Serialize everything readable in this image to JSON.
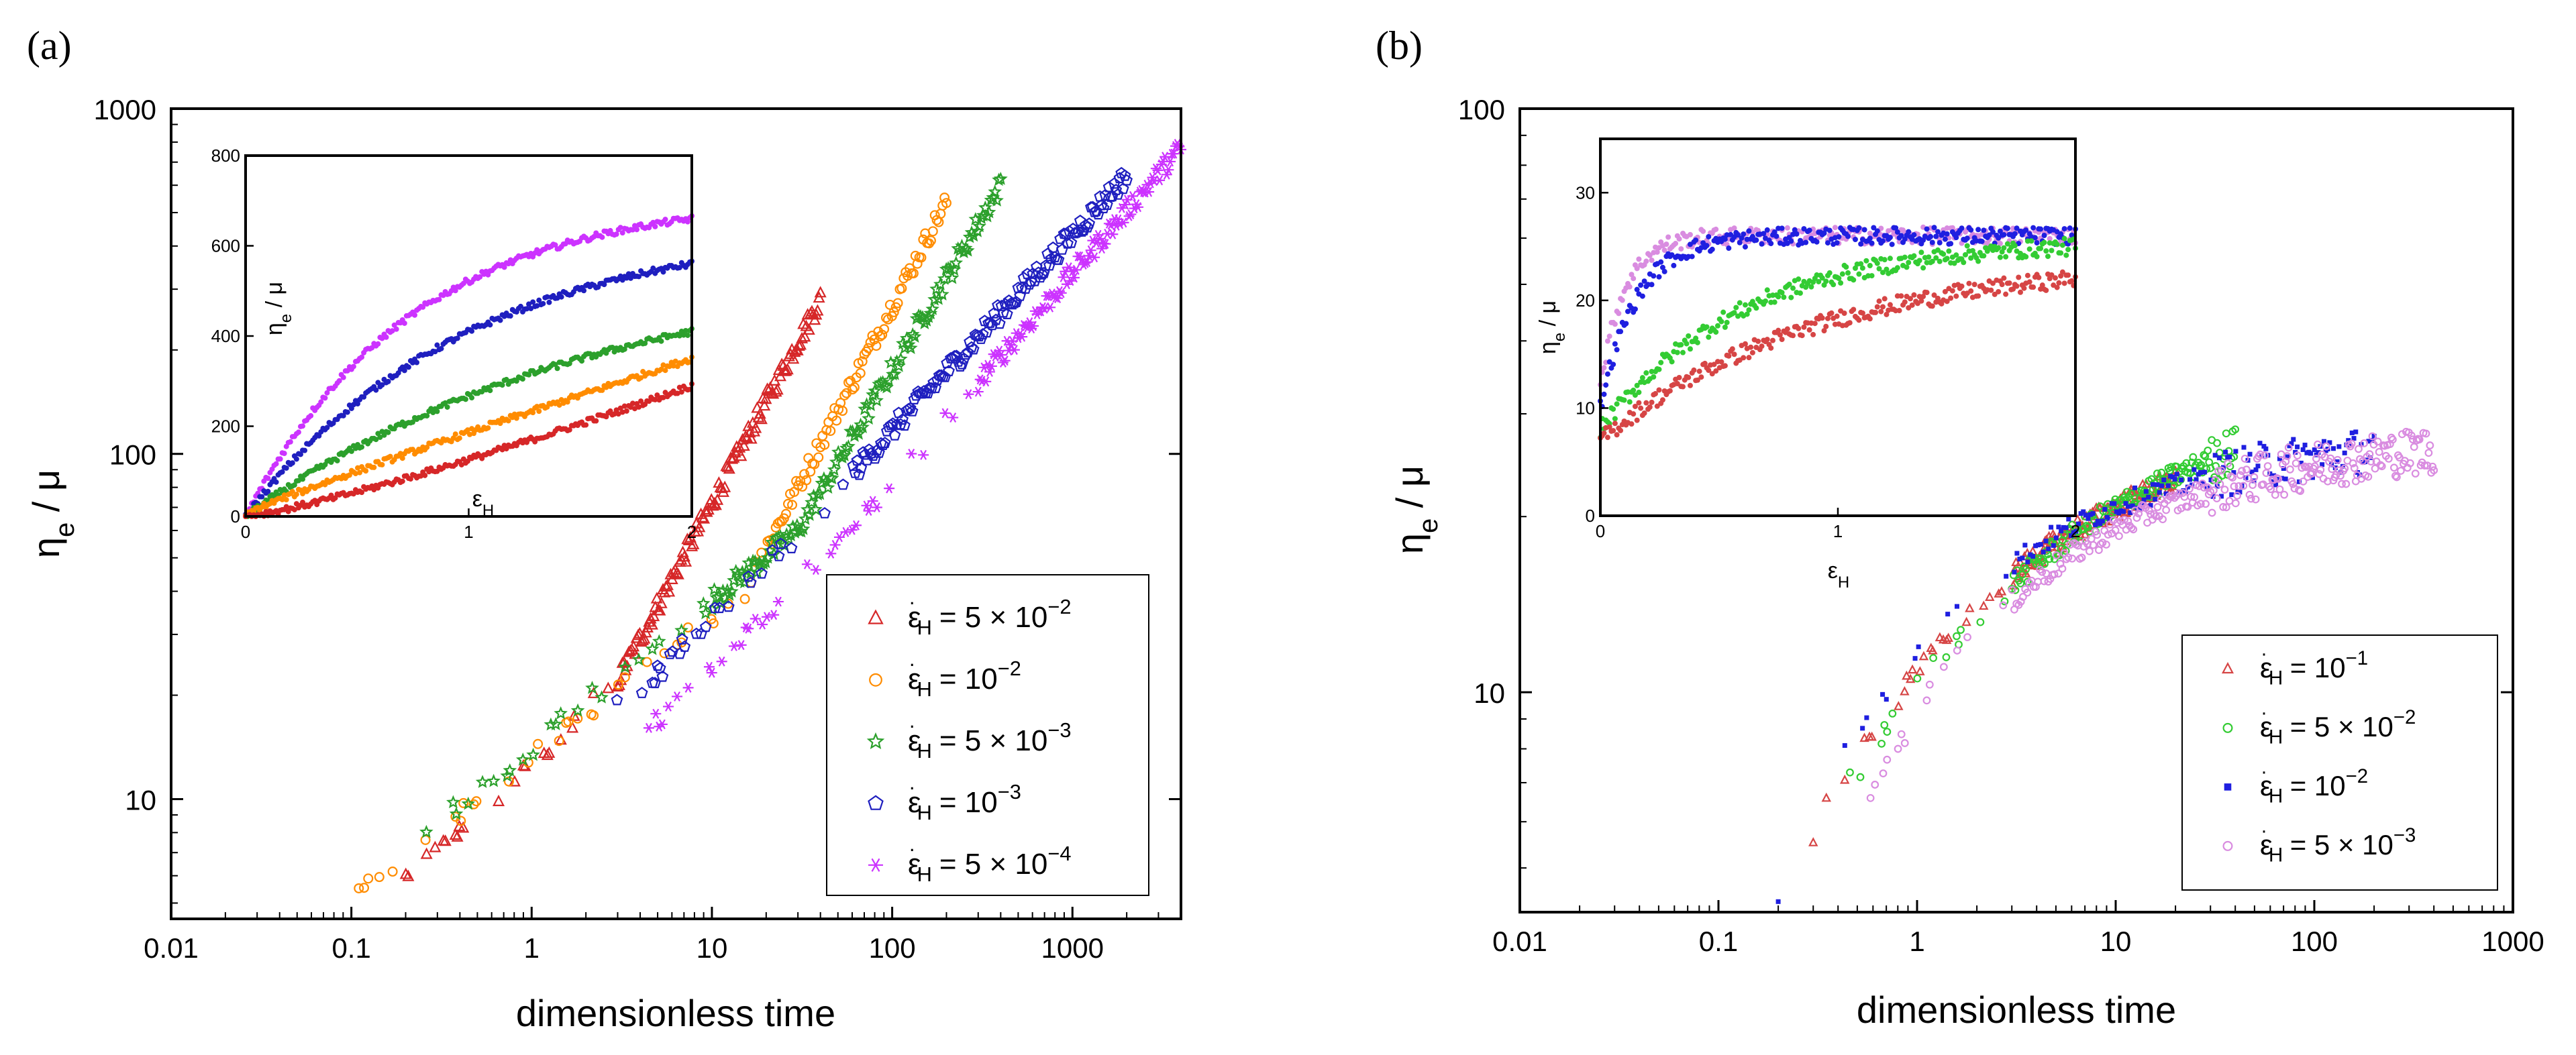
{
  "chart_data": [
    {
      "panel_label": "(a)",
      "type": "scatter",
      "xlabel": "dimensionless time",
      "ylabel_main": "η",
      "ylabel_sub": "e",
      "ylabel_rest": " / μ",
      "xscale": "log",
      "yscale": "log",
      "xlim": [
        0.01,
        4000
      ],
      "ylim": [
        4.5,
        1000
      ],
      "xticks": [
        0.01,
        0.1,
        1,
        10,
        100,
        1000
      ],
      "xtick_labels": [
        "0.01",
        "0.1",
        "1",
        "10",
        "100",
        "1000"
      ],
      "yticks": [
        10,
        100,
        1000
      ],
      "ytick_labels": [
        "10",
        "100",
        "1000"
      ],
      "legend_position": "bottom-right",
      "series": [
        {
          "legend_label": "= 5 × 10",
          "exponent": "−2",
          "color": "#d62728",
          "marker": "triangle",
          "t_start": 0.16,
          "t_end": 40,
          "y_start": 5.2,
          "y_end": 280,
          "y_mid": 22,
          "t_mid": 3.0,
          "dense_from": 3.0
        },
        {
          "legend_label": "= 10",
          "exponent": "−2",
          "color": "#ff8c00",
          "marker": "circle",
          "t_start": 0.11,
          "t_end": 200,
          "y_start": 5.4,
          "y_end": 540,
          "y_mid": 40,
          "t_mid": 15,
          "dense_from": 20
        },
        {
          "legend_label": "= 5 × 10",
          "exponent": "−3",
          "color": "#2ca02c",
          "marker": "star",
          "t_start": 0.22,
          "t_end": 400,
          "y_start": 7.5,
          "y_end": 600,
          "y_mid": 60,
          "t_mid": 30,
          "dense_from": 10
        },
        {
          "legend_label": "= 10",
          "exponent": "−3",
          "color": "#1f1fbf",
          "marker": "pentagon",
          "t_start": 2.0,
          "t_end": 2000,
          "y_start": 15,
          "y_end": 640,
          "y_mid": 40,
          "t_mid": 15,
          "dense_from": 60
        },
        {
          "legend_label": "= 5 × 10",
          "exponent": "−4",
          "color": "#cc33ff",
          "marker": "asterisk",
          "t_start": 4.0,
          "t_end": 4000,
          "y_start": 15,
          "y_end": 770,
          "y_mid": 55,
          "t_mid": 50,
          "dense_from": 300
        }
      ],
      "inset": {
        "type": "scatter",
        "xlabel_main": "ε",
        "xlabel_sub": "H",
        "ylabel_main": "η",
        "ylabel_sub": "e",
        "ylabel_rest": " / μ",
        "xlim": [
          0,
          2
        ],
        "ylim": [
          0,
          800
        ],
        "xticks": [
          0,
          1,
          2
        ],
        "xtick_labels": [
          "0",
          "1",
          "2"
        ],
        "yticks": [
          0,
          200,
          400,
          600,
          800
        ],
        "ytick_labels": [
          "0",
          "200",
          "400",
          "600",
          "800"
        ],
        "curves": [
          {
            "color": "#cc33ff",
            "end": 660,
            "shape": "sat",
            "tau": 0.75
          },
          {
            "color": "#1f1fbf",
            "end": 560,
            "shape": "sat",
            "tau": 1.0
          },
          {
            "color": "#2ca02c",
            "end": 410,
            "shape": "sat",
            "tau": 1.6
          },
          {
            "color": "#ff8c00",
            "end": 350,
            "shape": "lin",
            "tau": 0
          },
          {
            "color": "#d62728",
            "end": 290,
            "shape": "conv",
            "tau": 0
          }
        ]
      }
    },
    {
      "panel_label": "(b)",
      "type": "scatter",
      "xlabel": "dimensionless time",
      "ylabel_main": "η",
      "ylabel_sub": "e",
      "ylabel_rest": " / μ",
      "xscale": "log",
      "yscale": "log",
      "xlim": [
        0.01,
        1000
      ],
      "ylim": [
        4.2,
        100
      ],
      "xticks": [
        0.01,
        0.1,
        1,
        10,
        100,
        1000
      ],
      "xtick_labels": [
        "0.01",
        "0.1",
        "1",
        "10",
        "100",
        "1000"
      ],
      "yticks": [
        10,
        100
      ],
      "ytick_labels": [
        "10",
        "100"
      ],
      "legend_position": "bottom-right",
      "series": [
        {
          "legend_label": "= 10",
          "exponent": "−1",
          "color": "#d64545",
          "marker": "triangle",
          "t_start": 0.3,
          "t_end": 20,
          "y_start": 5.7,
          "y_end": 23
        },
        {
          "legend_label": "= 5 × 10",
          "exponent": "−2",
          "color": "#33cc33",
          "marker": "circle",
          "t_start": 0.3,
          "t_end": 40,
          "y_start": 5.4,
          "y_end": 26
        },
        {
          "legend_label": "= 10",
          "exponent": "−2",
          "color": "#1f1fe0",
          "marker": "square",
          "t_start": 0.2,
          "t_end": 200,
          "y_start": 4.5,
          "y_end": 26
        },
        {
          "legend_label": "= 5 × 10",
          "exponent": "−3",
          "color": "#d98ce0",
          "marker": "circle",
          "t_start": 0.4,
          "t_end": 400,
          "y_start": 5.1,
          "y_end": 26
        }
      ],
      "inset": {
        "type": "scatter",
        "xlabel_main": "ε",
        "xlabel_sub": "H",
        "ylabel_main": "η",
        "ylabel_sub": "e",
        "ylabel_rest": " / μ",
        "xlim": [
          0,
          2
        ],
        "ylim": [
          0,
          35
        ],
        "xticks": [
          0,
          1,
          2
        ],
        "xtick_labels": [
          "0",
          "1",
          "2"
        ],
        "yticks": [
          0,
          10,
          20,
          30
        ],
        "ytick_labels": [
          "0",
          "10",
          "20",
          "30"
        ],
        "curves": [
          {
            "color": "#d98ce0",
            "start": 12,
            "end": 26,
            "tau": 0.1
          },
          {
            "color": "#1f1fe0",
            "start": 10,
            "end": 26,
            "tau": 0.15
          },
          {
            "color": "#33cc33",
            "start": 8,
            "end": 25,
            "tau": 0.6
          },
          {
            "color": "#d64545",
            "start": 7,
            "end": 22,
            "tau": 0.9
          }
        ]
      }
    }
  ]
}
